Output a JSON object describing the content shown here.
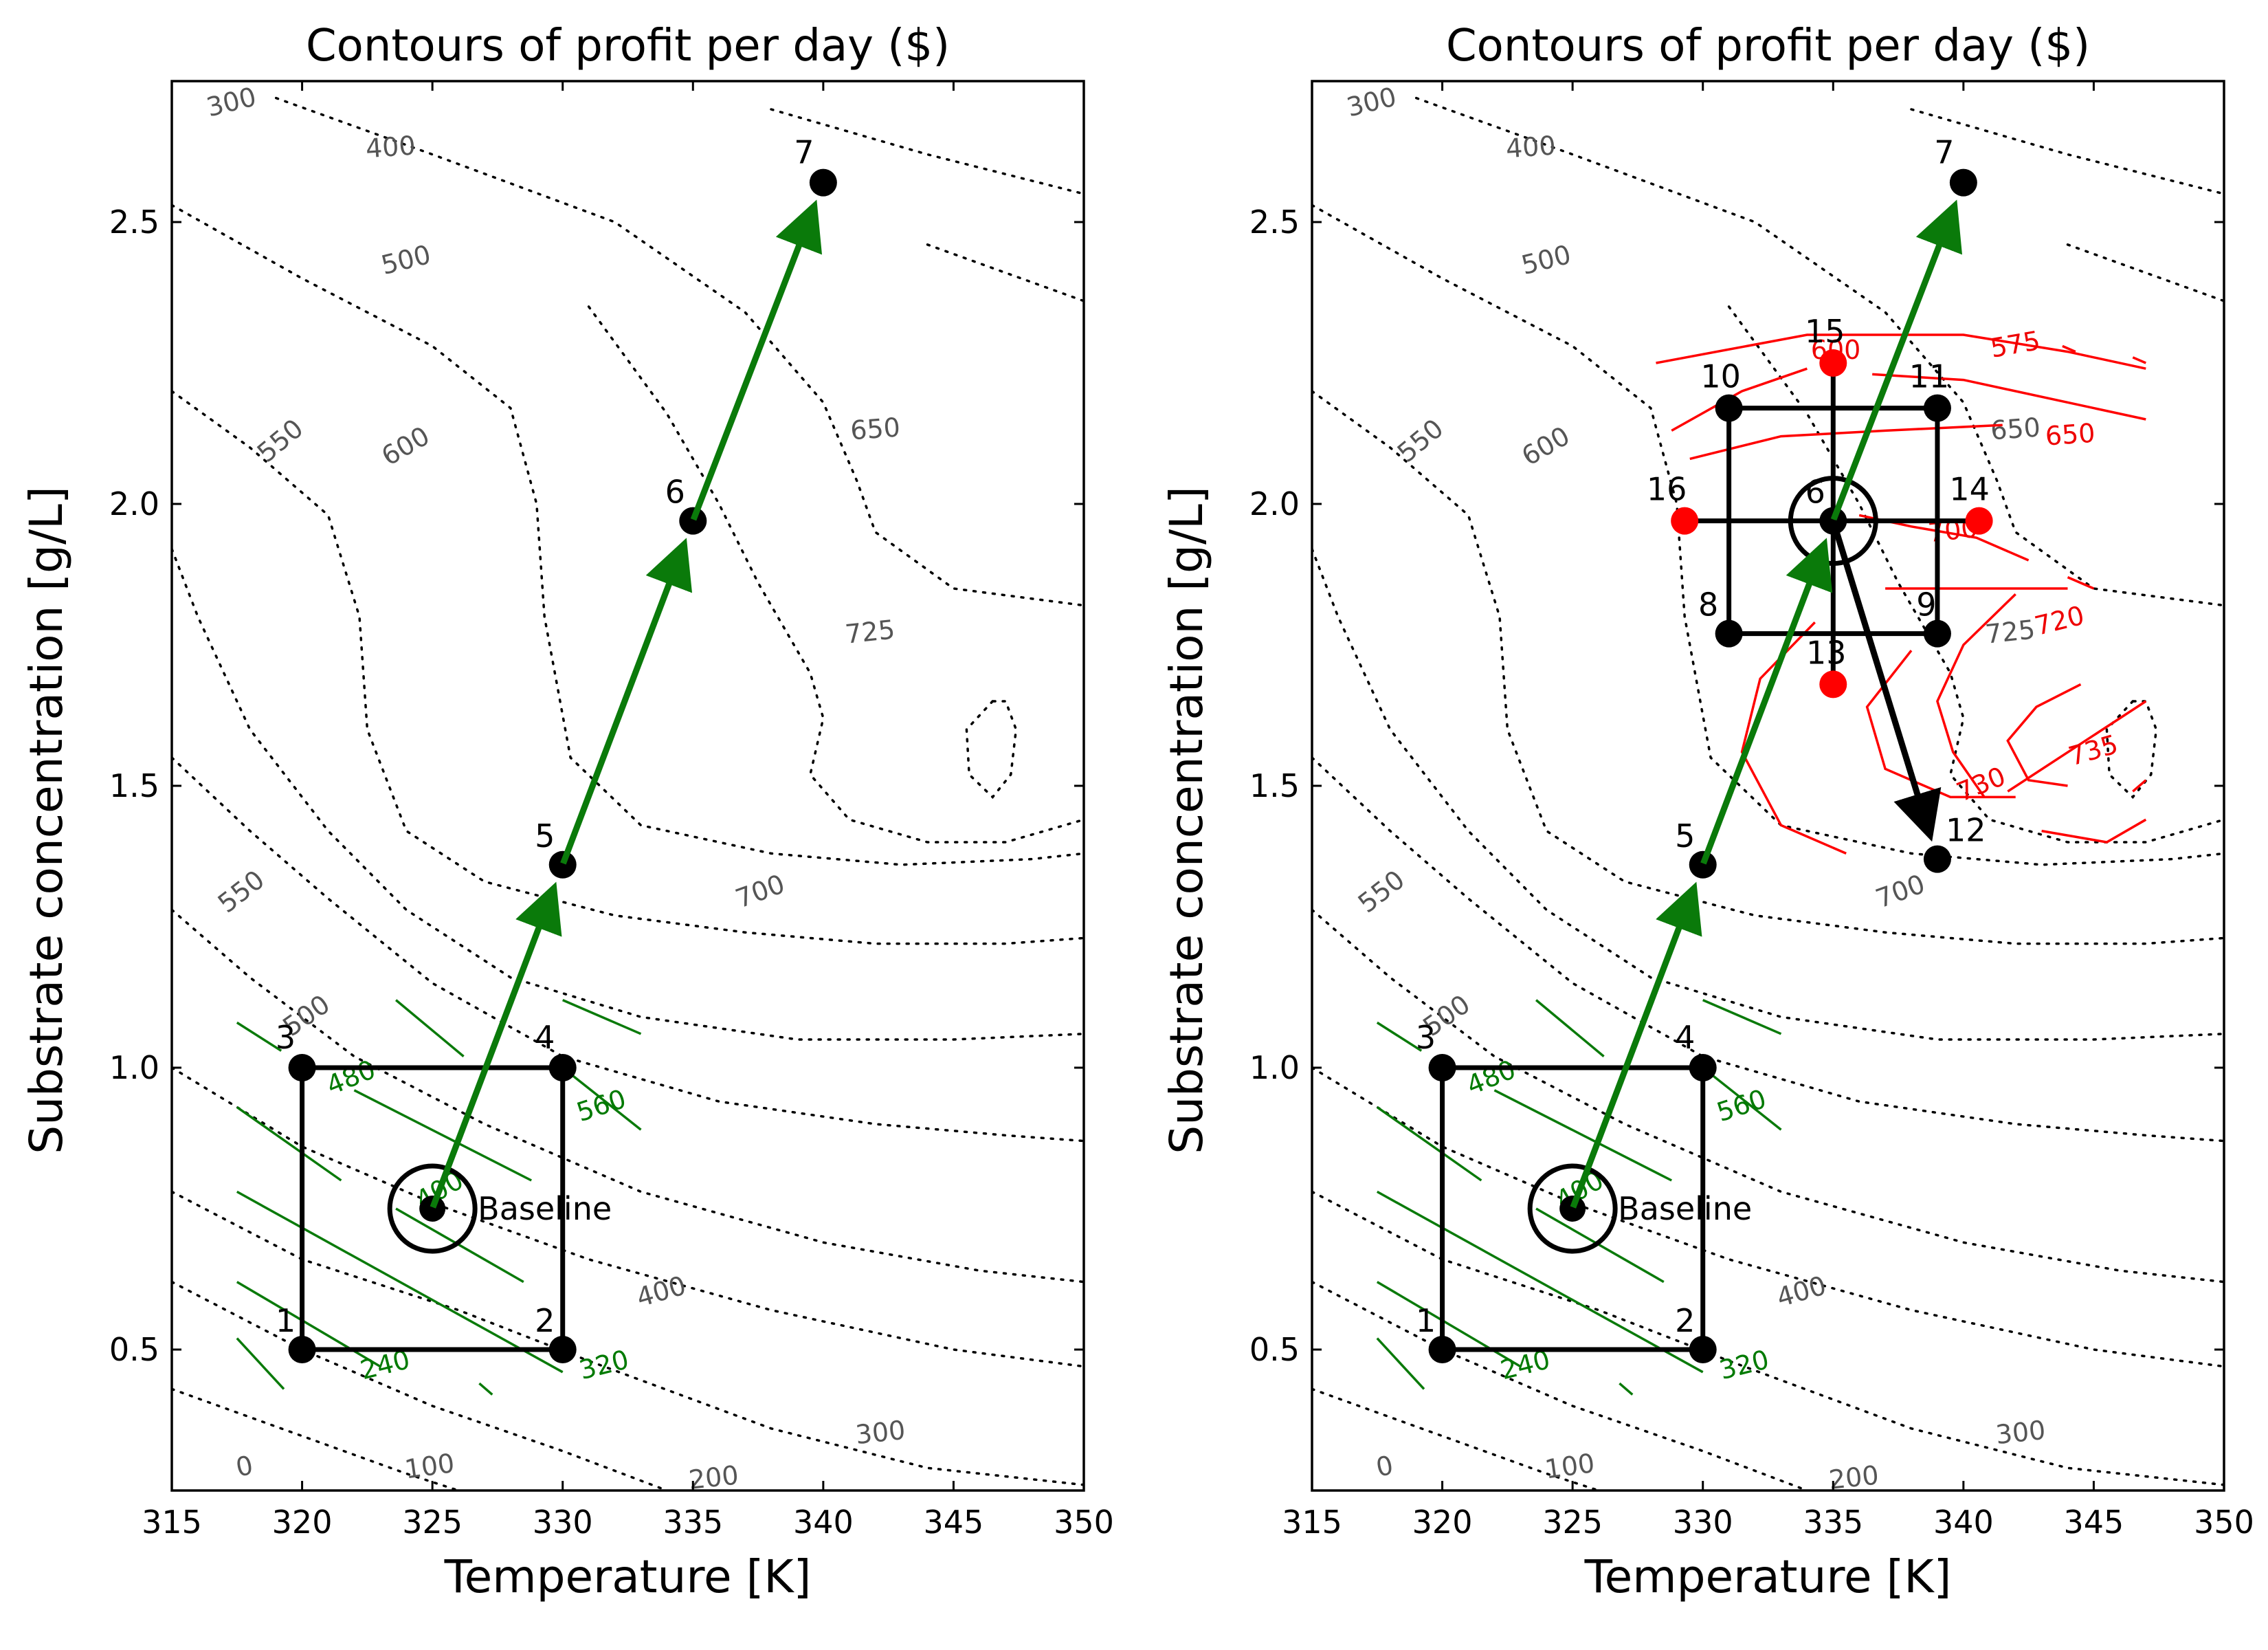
{
  "chart_data": [
    {
      "type": "contour",
      "title": "Contours of profit per day ($)",
      "xlabel": "Temperature [K]",
      "ylabel": "Substrate concentration [g/L]",
      "xlim": [
        315,
        350
      ],
      "ylim": [
        0.25,
        2.75
      ],
      "xticks": [
        "315",
        "320",
        "325",
        "330",
        "335",
        "340",
        "345",
        "350"
      ],
      "yticks": [
        "0.5",
        "1.0",
        "1.5",
        "2.0",
        "2.5"
      ],
      "true_surface_contour_levels": [
        "0",
        "100",
        "200",
        "300",
        "400",
        "500",
        "550",
        "600",
        "650",
        "700",
        "725"
      ],
      "model1_contour_levels": [
        "240",
        "320",
        "400",
        "480",
        "560"
      ],
      "points": [
        {
          "label": "1",
          "x": 320,
          "y": 0.5
        },
        {
          "label": "2",
          "x": 330,
          "y": 0.5
        },
        {
          "label": "3",
          "x": 320,
          "y": 1.0
        },
        {
          "label": "4",
          "x": 330,
          "y": 1.0
        },
        {
          "label": "5",
          "x": 330,
          "y": 1.36
        },
        {
          "label": "6",
          "x": 335,
          "y": 1.97
        },
        {
          "label": "7",
          "x": 340,
          "y": 2.57
        }
      ],
      "baseline": {
        "label": "Baseline",
        "x": 325,
        "y": 0.75
      },
      "path": [
        [
          325,
          0.75
        ],
        [
          330,
          1.36
        ],
        [
          335,
          1.97
        ],
        [
          340,
          2.57
        ]
      ]
    },
    {
      "type": "contour",
      "title": "Contours of profit per day ($)",
      "xlabel": "Temperature [K]",
      "ylabel": "Substrate concentration [g/L]",
      "xlim": [
        315,
        350
      ],
      "ylim": [
        0.25,
        2.75
      ],
      "xticks": [
        "315",
        "320",
        "325",
        "330",
        "335",
        "340",
        "345",
        "350"
      ],
      "yticks": [
        "0.5",
        "1.0",
        "1.5",
        "2.0",
        "2.5"
      ],
      "true_surface_contour_levels": [
        "0",
        "100",
        "200",
        "300",
        "400",
        "500",
        "550",
        "600",
        "650",
        "700",
        "725"
      ],
      "model1_contour_levels": [
        "240",
        "320",
        "400",
        "480",
        "560"
      ],
      "model2_contour_levels": [
        "575",
        "600",
        "650",
        "700",
        "720",
        "730",
        "735"
      ],
      "points": [
        {
          "label": "1",
          "x": 320,
          "y": 0.5
        },
        {
          "label": "2",
          "x": 330,
          "y": 0.5
        },
        {
          "label": "3",
          "x": 320,
          "y": 1.0
        },
        {
          "label": "4",
          "x": 330,
          "y": 1.0
        },
        {
          "label": "5",
          "x": 330,
          "y": 1.36
        },
        {
          "label": "6",
          "x": 335,
          "y": 1.97
        },
        {
          "label": "7",
          "x": 340,
          "y": 2.57
        },
        {
          "label": "8",
          "x": 331,
          "y": 1.77
        },
        {
          "label": "9",
          "x": 339,
          "y": 1.77
        },
        {
          "label": "10",
          "x": 331,
          "y": 2.17
        },
        {
          "label": "11",
          "x": 339,
          "y": 2.17
        },
        {
          "label": "12",
          "x": 339,
          "y": 1.37
        },
        {
          "label": "13",
          "x": 335,
          "y": 1.68,
          "color": "red"
        },
        {
          "label": "14",
          "x": 340.6,
          "y": 1.97,
          "color": "red"
        },
        {
          "label": "15",
          "x": 335,
          "y": 2.25,
          "color": "red"
        },
        {
          "label": "16",
          "x": 329.3,
          "y": 1.97,
          "color": "red"
        }
      ],
      "baseline": {
        "label": "Baseline",
        "x": 325,
        "y": 0.75
      },
      "path": [
        [
          325,
          0.75
        ],
        [
          330,
          1.36
        ],
        [
          335,
          1.97
        ],
        [
          340,
          2.57
        ]
      ],
      "path2": [
        [
          335,
          1.97
        ],
        [
          339,
          1.37
        ]
      ]
    }
  ],
  "colors": {
    "path": "#0a7a0a",
    "model1": "#0a7a0a",
    "model2": "#ff0000",
    "red_points": "#ff0000"
  }
}
